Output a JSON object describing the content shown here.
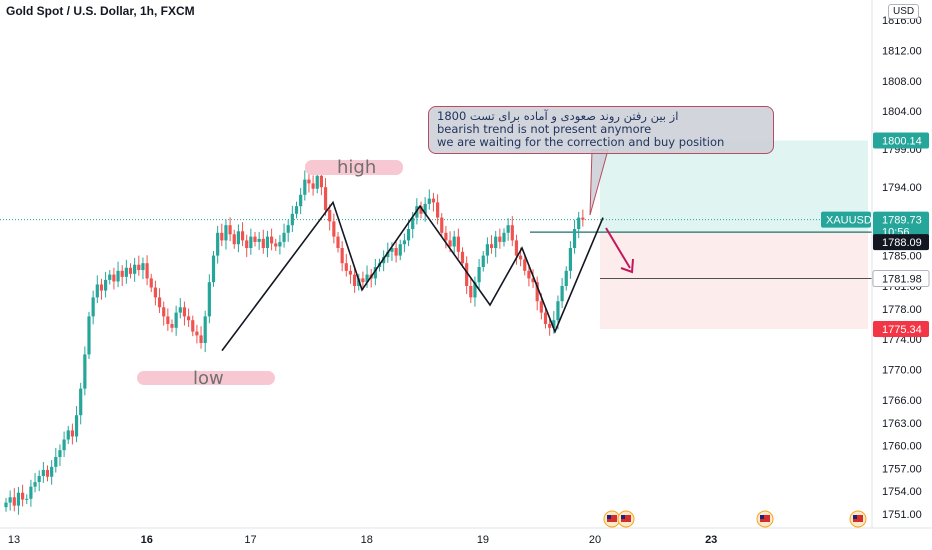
{
  "header": {
    "title": "Gold Spot / U.S. Dollar, 1h, FXCM",
    "currency": "USD"
  },
  "annotations": {
    "note_line1": "از بین رفتن روند صعودی و آماده برای تست 1800",
    "note_line2": "bearish trend is not present anymore",
    "note_line3": "we are waiting for the correction and buy position",
    "high_label": "high",
    "low_label": "low"
  },
  "price_tags": {
    "target": "1800.14",
    "symbol": "XAUUSD",
    "last": "1789.73",
    "countdown": "10:56",
    "entry": "1788.09",
    "level": "1781.98",
    "stop": "1775.34"
  },
  "colors": {
    "bull": "#26a69a",
    "bear": "#ef5350",
    "profit_zone": "#e0f4f1",
    "loss_zone": "#fdecec",
    "target_tag": "#26a69a",
    "stop_tag": "#f23645",
    "entry_tag": "#131722",
    "arrow": "#c2185b",
    "highlight": "#f8c8d2"
  },
  "chart_data": {
    "type": "candlestick",
    "symbol": "XAUUSD",
    "timeframe": "1h",
    "ylim": [
      1749,
      1819
    ],
    "y_ticks": [
      "1816.00",
      "1812.00",
      "1808.00",
      "1804.00",
      "1799.00",
      "1794.00",
      "1790.00",
      "1785.00",
      "1781.00",
      "1778.00",
      "1774.00",
      "1770.00",
      "1766.00",
      "1763.00",
      "1760.00",
      "1757.00",
      "1754.00",
      "1751.00"
    ],
    "y_tick_values": [
      1816,
      1812,
      1808,
      1804,
      1799,
      1794,
      1790,
      1785,
      1781,
      1778,
      1774,
      1770,
      1766,
      1763,
      1760,
      1757,
      1754,
      1751
    ],
    "x_ticks": [
      "13",
      "16",
      "17",
      "18",
      "19",
      "20",
      "23"
    ],
    "x_tick_positions": [
      0,
      32,
      57,
      85,
      113,
      140,
      168
    ],
    "closes": [
      1752.5,
      1753.2,
      1752.1,
      1753.8,
      1752.9,
      1753.0,
      1754.6,
      1755.2,
      1756.0,
      1756.8,
      1755.9,
      1757.2,
      1758.5,
      1759.4,
      1760.8,
      1762.0,
      1761.2,
      1764.0,
      1767.5,
      1772.0,
      1777.0,
      1779.5,
      1781.2,
      1780.4,
      1781.8,
      1782.5,
      1781.6,
      1783.0,
      1782.2,
      1783.4,
      1782.6,
      1783.8,
      1783.1,
      1784.0,
      1782.0,
      1780.8,
      1779.5,
      1778.2,
      1777.0,
      1776.0,
      1775.5,
      1777.5,
      1778.2,
      1777.0,
      1776.5,
      1775.0,
      1774.5,
      1773.5,
      1777.0,
      1781.5,
      1785.0,
      1788.0,
      1787.0,
      1789.0,
      1787.8,
      1786.5,
      1788.2,
      1787.0,
      1786.0,
      1787.5,
      1786.8,
      1787.2,
      1786.0,
      1787.5,
      1786.6,
      1786.2,
      1786.8,
      1788.0,
      1789.0,
      1790.5,
      1791.5,
      1793.0,
      1795.0,
      1794.5,
      1793.8,
      1795.5,
      1794.0,
      1791.0,
      1789.5,
      1787.5,
      1786.0,
      1784.0,
      1783.0,
      1782.5,
      1781.0,
      1782.0,
      1781.5,
      1782.5,
      1782.0,
      1783.5,
      1784.0,
      1784.8,
      1785.5,
      1786.0,
      1785.0,
      1786.5,
      1787.0,
      1788.5,
      1790.0,
      1791.5,
      1790.5,
      1791.8,
      1792.5,
      1792.0,
      1790.0,
      1788.0,
      1787.0,
      1786.2,
      1787.5,
      1785.5,
      1784.0,
      1781.0,
      1779.5,
      1781.5,
      1783.5,
      1785.0,
      1786.5,
      1786.0,
      1787.5,
      1786.8,
      1788.0,
      1789.0,
      1787.0,
      1785.0,
      1784.5,
      1783.0,
      1782.0,
      1781.5,
      1779.0,
      1777.5,
      1776.0,
      1775.5,
      1776.5,
      1779.0,
      1781.0,
      1783.0,
      1786.0,
      1788.5,
      1790.0,
      1789.73
    ],
    "drawn_zigzag_prices": [
      1772.5,
      1792,
      1780.5,
      1791.5,
      1778.5,
      1786,
      1775,
      1790
    ],
    "position_tool": {
      "entry": 1788.09,
      "target": 1800.14,
      "stop": 1775.34,
      "level": 1781.98,
      "last": 1789.73
    }
  }
}
